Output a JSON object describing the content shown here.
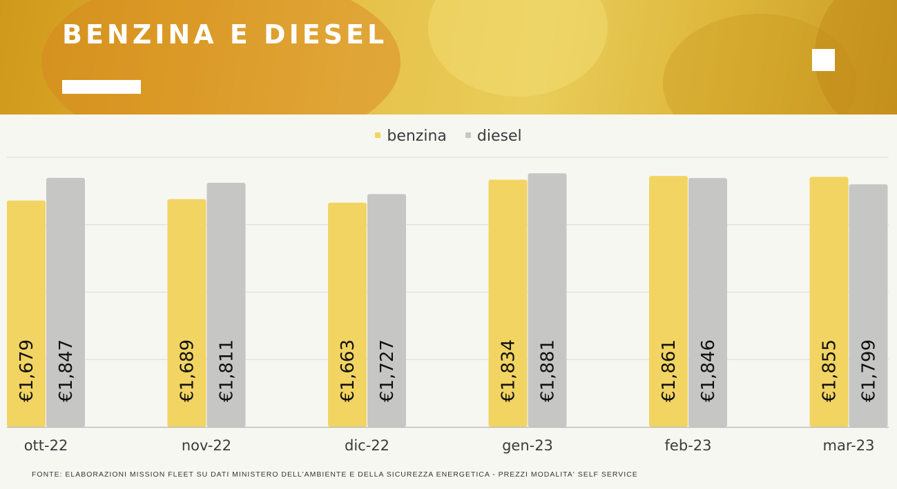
{
  "header": {
    "title": "BENZINA E DIESEL"
  },
  "chart_data": {
    "type": "bar",
    "categories": [
      "ott-22",
      "nov-22",
      "dic-22",
      "gen-23",
      "feb-23",
      "mar-23"
    ],
    "series": [
      {
        "name": "benzina",
        "values": [
          1.679,
          1.689,
          1.663,
          1.834,
          1.861,
          1.855
        ],
        "labels": [
          "€1,679",
          "€1,689",
          "€1,663",
          "€1,834",
          "€1,861",
          "€1,855"
        ]
      },
      {
        "name": "diesel",
        "values": [
          1.847,
          1.811,
          1.727,
          1.881,
          1.846,
          1.799
        ],
        "labels": [
          "€1,847",
          "€1,811",
          "€1,727",
          "€1,881",
          "€1,846",
          "€1,799"
        ]
      }
    ],
    "ylim": [
      0,
      2.0
    ],
    "grid": true,
    "legend": "top-center",
    "colors": {
      "benzina": "#f2d462",
      "diesel": "#c6c6c4"
    }
  },
  "source": "FONTE: ELABORAZIONI MISSION FLEET SU DATI MINISTERO DELL'AMBIENTE E DELLA SICUREZZA ENERGETICA - PREZZI MODALITA' SELF SERVICE"
}
